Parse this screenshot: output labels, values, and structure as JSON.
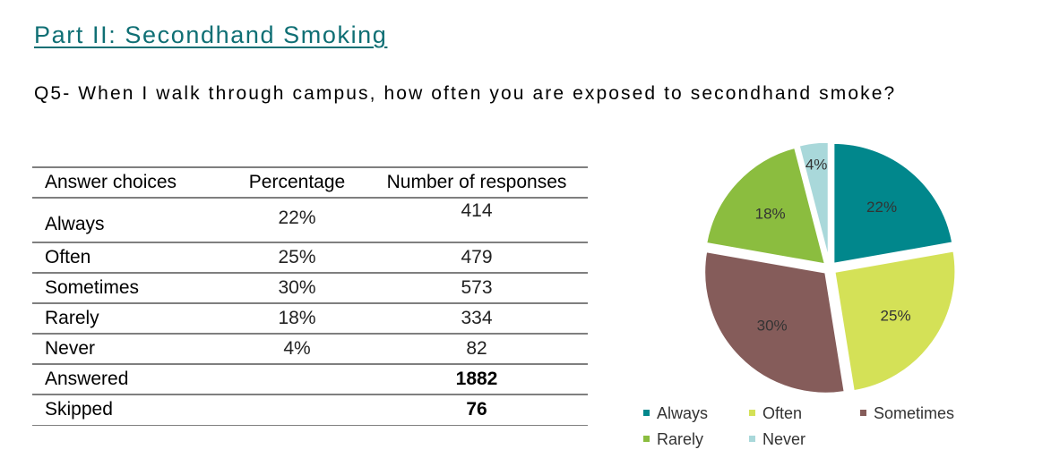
{
  "section_title": "Part II: Secondhand Smoking",
  "question": "Q5- When I walk through campus, how often you are exposed to secondhand smoke?",
  "table": {
    "headers": [
      "Answer choices",
      "Percentage",
      "Number of responses"
    ],
    "rows": [
      {
        "choice": "Always",
        "percentage": "22%",
        "responses": "414"
      },
      {
        "choice": "Often",
        "percentage": "25%",
        "responses": "479"
      },
      {
        "choice": "Sometimes",
        "percentage": "30%",
        "responses": "573"
      },
      {
        "choice": "Rarely",
        "percentage": "18%",
        "responses": "334"
      },
      {
        "choice": "Never",
        "percentage": "4%",
        "responses": "82"
      }
    ],
    "answered_label": "Answered",
    "answered_value": "1882",
    "skipped_label": "Skipped",
    "skipped_value": "76"
  },
  "chart_data": {
    "type": "pie",
    "categories": [
      "Always",
      "Often",
      "Sometimes",
      "Rarely",
      "Never"
    ],
    "values": [
      22,
      25,
      30,
      18,
      4
    ],
    "labels": [
      "22%",
      "25%",
      "30%",
      "18%",
      "4%"
    ],
    "colors": [
      "#01878c",
      "#d4e157",
      "#855c5a",
      "#8bbd3f",
      "#a9d8da"
    ],
    "legend_position": "bottom",
    "exploded": true,
    "title": ""
  }
}
